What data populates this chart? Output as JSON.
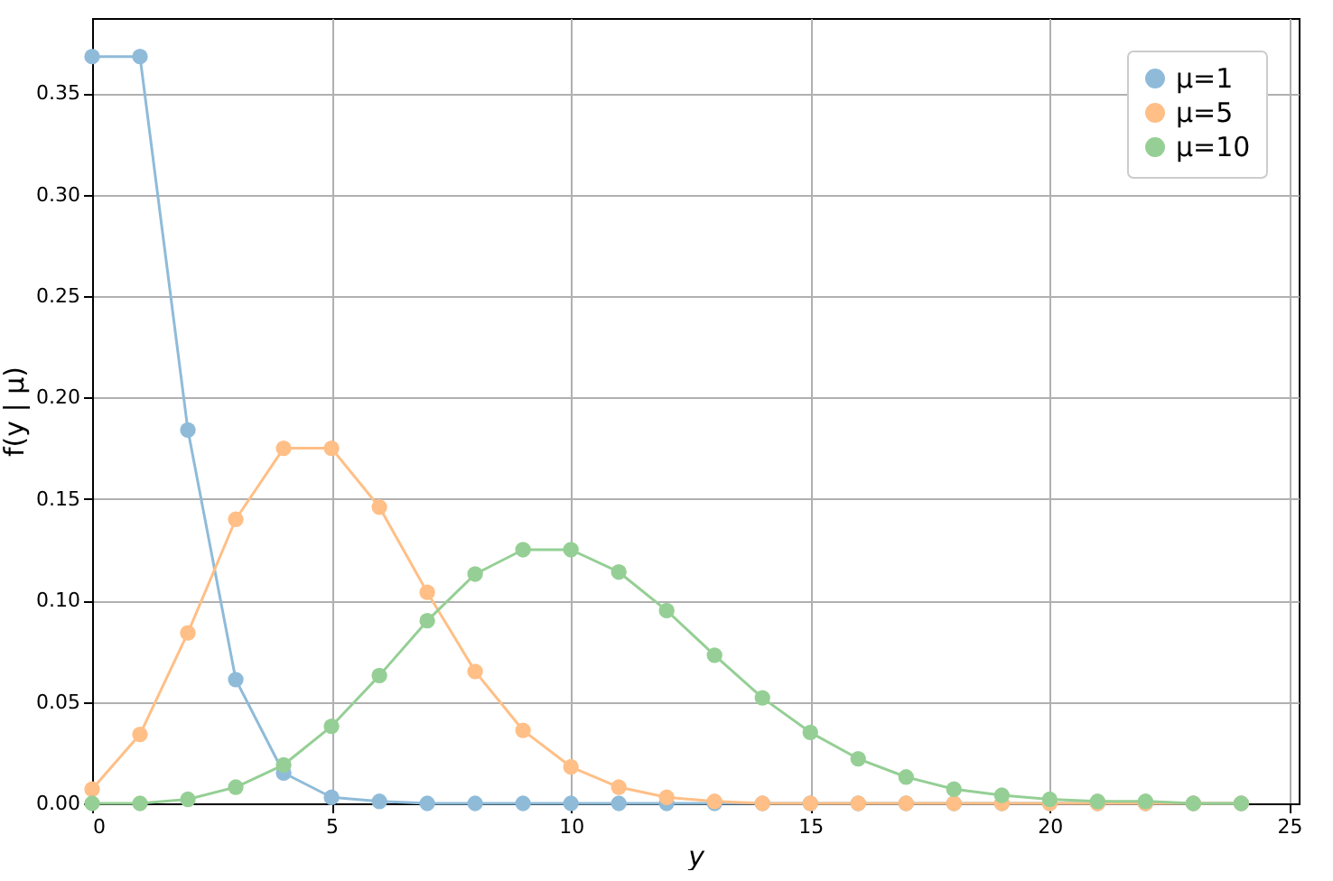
{
  "chart_data": {
    "type": "line",
    "xlabel": "y",
    "ylabel": "f(y | μ)",
    "x": [
      0,
      1,
      2,
      3,
      4,
      5,
      6,
      7,
      8,
      9,
      10,
      11,
      12,
      13,
      14,
      15,
      16,
      17,
      18,
      19,
      20,
      21,
      22,
      23,
      24
    ],
    "series": [
      {
        "name": "μ=1",
        "color": "#8fbbd9",
        "values": [
          0.368,
          0.368,
          0.184,
          0.061,
          0.015,
          0.003,
          0.001,
          0.0,
          0.0,
          0.0,
          0.0,
          0.0,
          0.0,
          0.0,
          0.0,
          0.0,
          0.0,
          0.0,
          0.0,
          0.0,
          0.0,
          0.0,
          0.0,
          0.0,
          0.0
        ]
      },
      {
        "name": "μ=5",
        "color": "#ffbf86",
        "values": [
          0.007,
          0.034,
          0.084,
          0.14,
          0.175,
          0.175,
          0.146,
          0.104,
          0.065,
          0.036,
          0.018,
          0.008,
          0.003,
          0.001,
          0.0,
          0.0,
          0.0,
          0.0,
          0.0,
          0.0,
          0.0,
          0.0,
          0.0,
          0.0,
          0.0
        ]
      },
      {
        "name": "μ=10",
        "color": "#95cf95",
        "values": [
          0.0,
          0.0,
          0.002,
          0.008,
          0.019,
          0.038,
          0.063,
          0.09,
          0.113,
          0.125,
          0.125,
          0.114,
          0.095,
          0.073,
          0.052,
          0.035,
          0.022,
          0.013,
          0.007,
          0.004,
          0.002,
          0.001,
          0.001,
          0.0,
          0.0
        ]
      }
    ],
    "xlim": [
      0,
      25.2
    ],
    "xticks": [
      0,
      5,
      10,
      15,
      20,
      25
    ],
    "ylim": [
      0,
      0.387
    ],
    "yticks": [
      {
        "value": 0,
        "label": "0.00"
      },
      {
        "value": 0.05,
        "label": "0.05"
      },
      {
        "value": 0.1,
        "label": "0.10"
      },
      {
        "value": 0.15,
        "label": "0.15"
      },
      {
        "value": 0.2,
        "label": "0.20"
      },
      {
        "value": 0.25,
        "label": "0.25"
      },
      {
        "value": 0.3,
        "label": "0.30"
      },
      {
        "value": 0.35,
        "label": "0.35"
      }
    ],
    "grid": true,
    "legend": "top right",
    "marker": "circle",
    "line_style": "solid"
  }
}
